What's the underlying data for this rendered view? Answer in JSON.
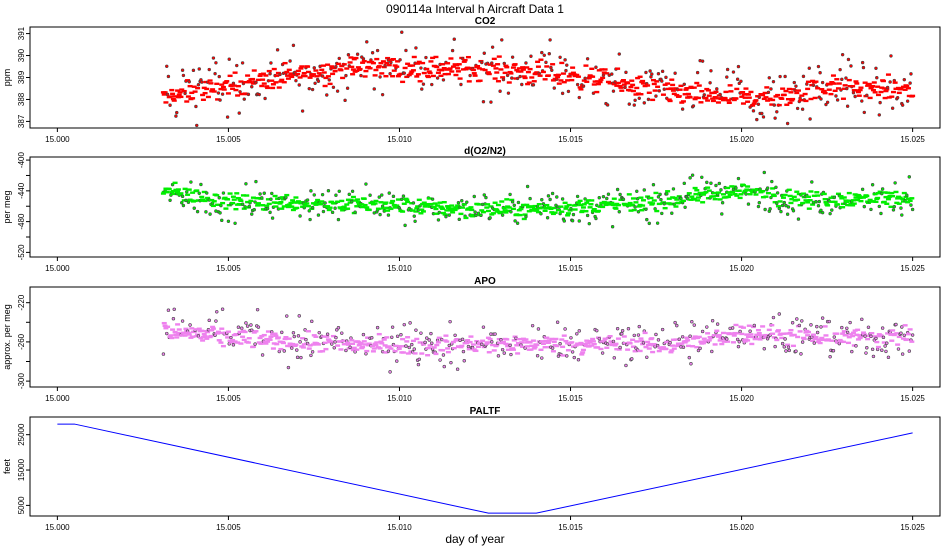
{
  "title": "090114a   Interval h Aircraft Data 1",
  "xlabel": "day of year",
  "chart_data": [
    {
      "type": "scatter",
      "title": "CO2",
      "ylabel": "ppm",
      "color": "#ff0000",
      "yticks": [
        387,
        388,
        389,
        390,
        391
      ],
      "ylim": [
        386.7,
        391.3
      ],
      "xticks": [
        "15.000",
        "15.005",
        "15.010",
        "15.015",
        "15.020",
        "15.025"
      ],
      "xlim": [
        14.9992,
        15.0258
      ],
      "series": [
        {
          "x_range": [
            15.0031,
            15.025
          ],
          "trend": [
            [
              15.0031,
              388.1
            ],
            [
              15.006,
              388.9
            ],
            [
              15.009,
              389.5
            ],
            [
              15.0125,
              389.4
            ],
            [
              15.015,
              389.1
            ],
            [
              15.018,
              388.3
            ],
            [
              15.021,
              388.0
            ],
            [
              15.0225,
              388.6
            ],
            [
              15.025,
              388.4
            ]
          ],
          "spread": 0.45,
          "outlier_spread": 1.2
        }
      ]
    },
    {
      "type": "scatter",
      "title": "d(O2/N2)",
      "ylabel": "per meg",
      "color": "#00ee00",
      "yticks": [
        -520,
        -500,
        -480,
        -460,
        -440,
        -420,
        -400
      ],
      "ytick_labels": [
        "-520",
        "",
        "-480",
        "",
        "-440",
        "",
        "-400"
      ],
      "ylim": [
        -526,
        -396
      ],
      "xticks": [
        "15.000",
        "15.005",
        "15.010",
        "15.015",
        "15.020",
        "15.025"
      ],
      "xlim": [
        14.9992,
        15.0258
      ],
      "series": [
        {
          "x_range": [
            15.0031,
            15.025
          ],
          "trend": [
            [
              15.0031,
              -440
            ],
            [
              15.005,
              -455
            ],
            [
              15.007,
              -455
            ],
            [
              15.01,
              -460
            ],
            [
              15.0125,
              -464
            ],
            [
              15.015,
              -462
            ],
            [
              15.0175,
              -455
            ],
            [
              15.019,
              -445
            ],
            [
              15.02,
              -440
            ],
            [
              15.022,
              -452
            ],
            [
              15.025,
              -448
            ]
          ],
          "spread": 9,
          "outlier_spread": 22
        }
      ]
    },
    {
      "type": "scatter",
      "title": "APO",
      "ylabel": "approx. per meg",
      "color": "#ee82ee",
      "yticks": [
        -300,
        -280,
        -260,
        -240,
        -220
      ],
      "ytick_labels": [
        "-300",
        "",
        "-260",
        "",
        "-220"
      ],
      "ylim": [
        -306,
        -204
      ],
      "xticks": [
        "15.000",
        "15.005",
        "15.010",
        "15.015",
        "15.020",
        "15.025"
      ],
      "xlim": [
        14.9992,
        15.0258
      ],
      "series": [
        {
          "x_range": [
            15.0031,
            15.025
          ],
          "trend": [
            [
              15.0031,
              -248
            ],
            [
              15.005,
              -255
            ],
            [
              15.008,
              -262
            ],
            [
              15.011,
              -264
            ],
            [
              15.0135,
              -262
            ],
            [
              15.016,
              -262
            ],
            [
              15.0185,
              -262
            ],
            [
              15.02,
              -250
            ],
            [
              15.022,
              -256
            ],
            [
              15.025,
              -255
            ]
          ],
          "spread": 8,
          "outlier_spread": 20
        }
      ]
    },
    {
      "type": "line",
      "title": "PALTF",
      "ylabel": "feet",
      "color": "#0000ff",
      "yticks": [
        5000,
        15000,
        25000
      ],
      "ylim": [
        2000,
        30000
      ],
      "xticks": [
        "15.000",
        "15.005",
        "15.010",
        "15.015",
        "15.020",
        "15.025"
      ],
      "xlim": [
        14.9992,
        15.0258
      ],
      "series": [
        {
          "x": [
            15.0,
            15.0005,
            15.0126,
            15.014,
            15.025
          ],
          "y": [
            28000,
            28000,
            2800,
            2800,
            25500
          ]
        }
      ]
    }
  ]
}
